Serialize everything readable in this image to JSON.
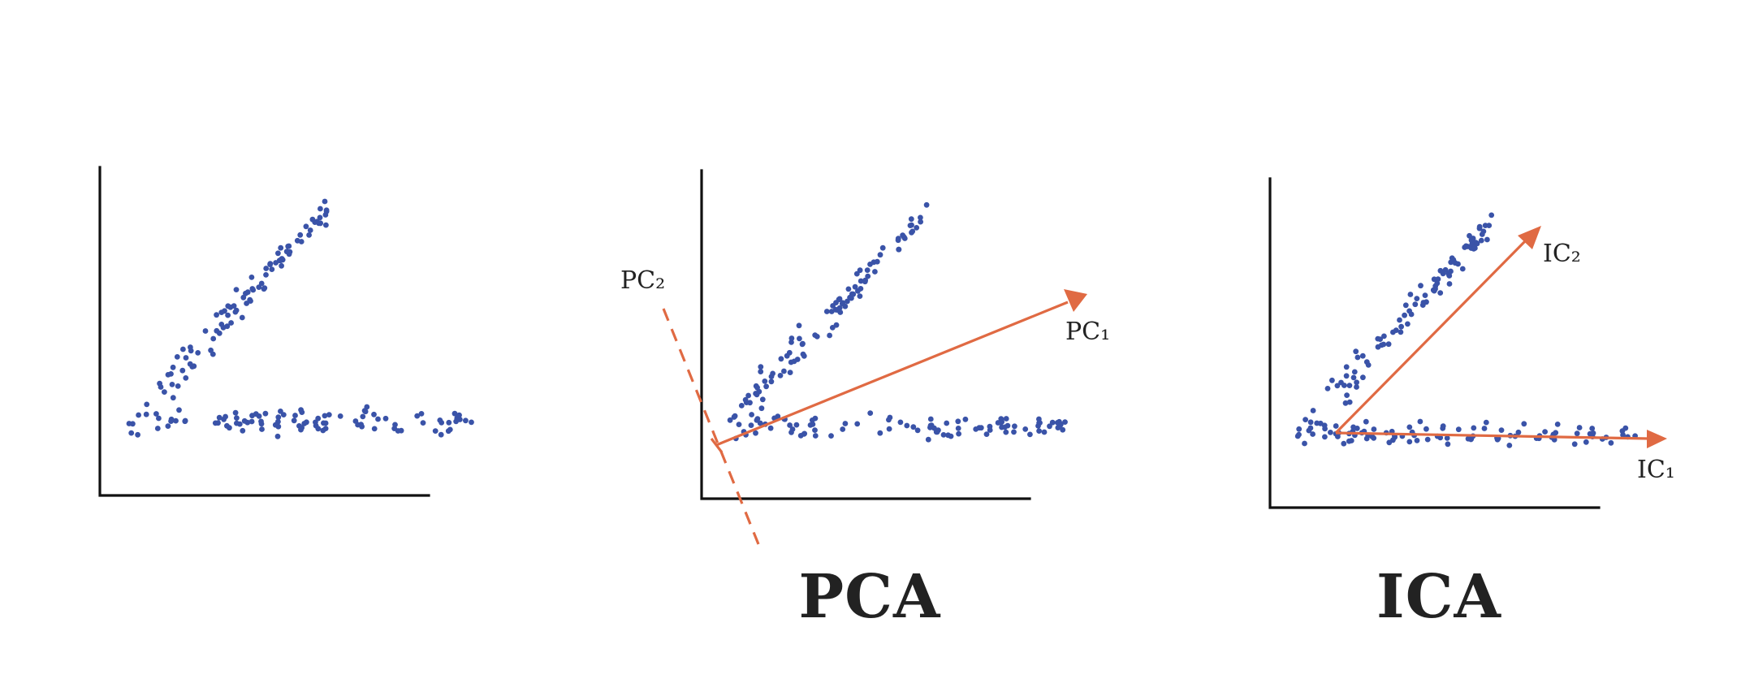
{
  "colors": {
    "points": "#3a53a8",
    "vectors": "#e06a43",
    "axes": "#111111",
    "text": "#222222"
  },
  "panels": [
    {
      "id": "raw",
      "title": "",
      "vector_labels": []
    },
    {
      "id": "pca",
      "title": "PCA",
      "vector_labels": [
        "PC₂",
        "PC₁"
      ]
    },
    {
      "id": "ica",
      "title": "ICA",
      "vector_labels": [
        "IC₂",
        "IC₁"
      ]
    }
  ]
}
